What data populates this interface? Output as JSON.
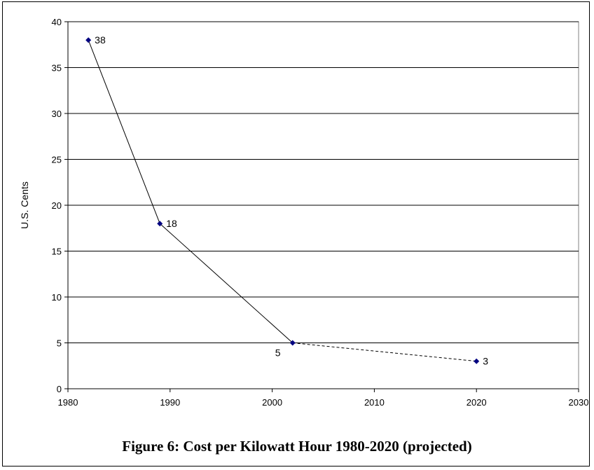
{
  "caption": "Figure 6: Cost per Kilowatt Hour 1980-2020 (projected)",
  "chart_data": {
    "type": "line",
    "title": "",
    "xlabel": "",
    "ylabel": "U.S. Cents",
    "xlim": [
      1980,
      2030
    ],
    "ylim": [
      0,
      40
    ],
    "x_ticks": [
      1980,
      1990,
      2000,
      2010,
      2020,
      2030
    ],
    "y_ticks": [
      0,
      5,
      10,
      15,
      20,
      25,
      30,
      35,
      40
    ],
    "grid": "horizontal",
    "legend": "none",
    "series": [
      {
        "points": [
          {
            "x": 1982,
            "y": 38,
            "label": "38"
          },
          {
            "x": 1989,
            "y": 18,
            "label": "18"
          },
          {
            "x": 2002,
            "y": 5,
            "label": "5"
          },
          {
            "x": 2020,
            "y": 3,
            "label": "3"
          }
        ],
        "segments": [
          {
            "from": 0,
            "to": 1,
            "style": "solid"
          },
          {
            "from": 1,
            "to": 2,
            "style": "solid"
          },
          {
            "from": 2,
            "to": 3,
            "style": "dashed"
          }
        ],
        "marker": "diamond",
        "marker_color": "#000080",
        "line_color": "#000000"
      }
    ]
  }
}
